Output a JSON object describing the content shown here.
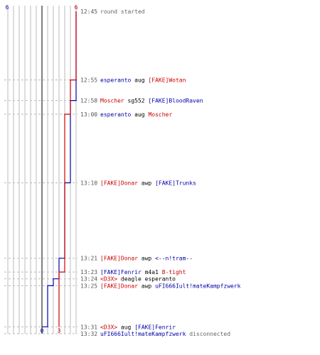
{
  "chart_data": {
    "type": "line",
    "title": "",
    "xlabel": "",
    "ylabel": "",
    "legend": "none",
    "grid": true,
    "y_axis": "time",
    "x_axis": "score",
    "x_range": [
      -6,
      6
    ],
    "time_range": [
      "12:45",
      "13:32"
    ],
    "end_labels": {
      "left": "6",
      "right": "6"
    },
    "final_labels": {
      "blue": "0",
      "red": "3"
    },
    "colors": {
      "blue": "#0000aa",
      "red": "#cc0000",
      "text": "#000000",
      "muted": "#666666",
      "grid": "#bbbbbb",
      "center": "#555555"
    },
    "series": [
      {
        "color": "blue",
        "points": [
          [
            6,
            "12:45"
          ],
          [
            6,
            "12:58"
          ],
          [
            5,
            "12:58"
          ],
          [
            5,
            "13:10"
          ],
          [
            4,
            "13:10"
          ],
          [
            4,
            "13:21"
          ],
          [
            3,
            "13:21"
          ],
          [
            3,
            "13:24"
          ],
          [
            2,
            "13:24"
          ],
          [
            2,
            "13:25"
          ],
          [
            1,
            "13:25"
          ],
          [
            1,
            "13:31"
          ],
          [
            0,
            "13:31"
          ]
        ]
      },
      {
        "color": "red",
        "points": [
          [
            6,
            "12:45"
          ],
          [
            6,
            "12:55"
          ],
          [
            5,
            "12:55"
          ],
          [
            5,
            "13:00"
          ],
          [
            4,
            "13:00"
          ],
          [
            4,
            "13:23"
          ],
          [
            3,
            "13:23"
          ],
          [
            3,
            "13:31"
          ]
        ]
      }
    ],
    "events": [
      {
        "time": "12:45",
        "parts": [
          {
            "t": "round started",
            "c": "muted"
          }
        ]
      },
      {
        "time": "12:55",
        "parts": [
          {
            "t": "esperanto",
            "c": "blue"
          },
          {
            "t": " aug ",
            "c": "text"
          },
          {
            "t": "[FAKE]Wotan",
            "c": "red"
          }
        ]
      },
      {
        "time": "12:58",
        "parts": [
          {
            "t": "Moscher",
            "c": "red"
          },
          {
            "t": " sg552 ",
            "c": "text"
          },
          {
            "t": "[FAKE]BloodRaven",
            "c": "blue"
          }
        ]
      },
      {
        "time": "13:00",
        "parts": [
          {
            "t": "esperanto",
            "c": "blue"
          },
          {
            "t": " aug ",
            "c": "text"
          },
          {
            "t": "Moscher",
            "c": "red"
          }
        ]
      },
      {
        "time": "13:10",
        "parts": [
          {
            "t": "[FAKE]Donar",
            "c": "red"
          },
          {
            "t": " awp ",
            "c": "text"
          },
          {
            "t": "[FAKE]Trunks",
            "c": "blue"
          }
        ]
      },
      {
        "time": "13:21",
        "parts": [
          {
            "t": "[FAKE]Donar",
            "c": "red"
          },
          {
            "t": " awp ",
            "c": "text"
          },
          {
            "t": "<--n!tram--",
            "c": "blue"
          }
        ]
      },
      {
        "time": "13:23",
        "parts": [
          {
            "t": "[FAKE]Fenrir",
            "c": "blue"
          },
          {
            "t": " m4a1 ",
            "c": "text"
          },
          {
            "t": "B-tight",
            "c": "red"
          }
        ]
      },
      {
        "time": "13:24",
        "parts": [
          {
            "t": "<D3X>",
            "c": "red"
          },
          {
            "t": " deagle esperanto",
            "c": "text"
          }
        ]
      },
      {
        "time": "13:25",
        "parts": [
          {
            "t": "[FAKE]Donar",
            "c": "red"
          },
          {
            "t": " awp ",
            "c": "text"
          },
          {
            "t": "uFI666Iult!mateKampfzwerk",
            "c": "blue"
          }
        ]
      },
      {
        "time": "13:31",
        "parts": [
          {
            "t": "<D3X>",
            "c": "red"
          },
          {
            "t": " aug ",
            "c": "text"
          },
          {
            "t": "[FAKE]Fenrir",
            "c": "blue"
          }
        ]
      },
      {
        "time": "13:32",
        "parts": [
          {
            "t": "uFI666Iult!mateKampfzwerk",
            "c": "blue"
          },
          {
            "t": " disconnected",
            "c": "muted"
          }
        ]
      }
    ]
  }
}
